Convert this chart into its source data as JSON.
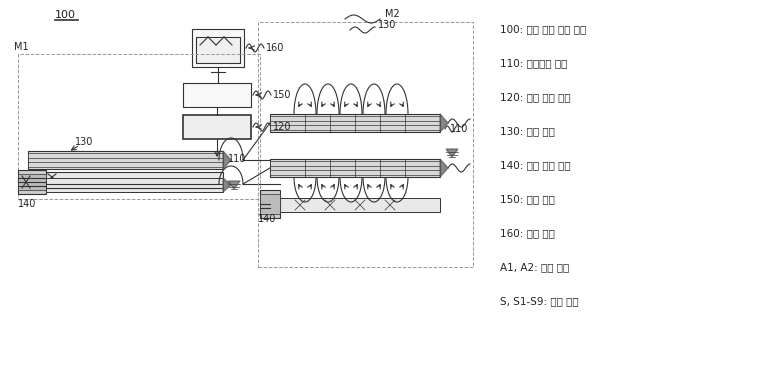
{
  "bg_color": "#ffffff",
  "lc": "#333333",
  "lc_light": "#888888",
  "lc_dash": "#999999",
  "legend_items": [
    "100: 누설 위치 감지 장치",
    "110: 벤추리관 유닛",
    "120: 누설 감지 유닛",
    "130: 이송 유닛",
    "140: 공기 공급 유닛",
    "150: 제어 유닛",
    "160: 출력 유닛",
    "A1, A2: 압축 공기",
    "S, S1-S9: 공기 시료"
  ],
  "font_size": 7.5
}
